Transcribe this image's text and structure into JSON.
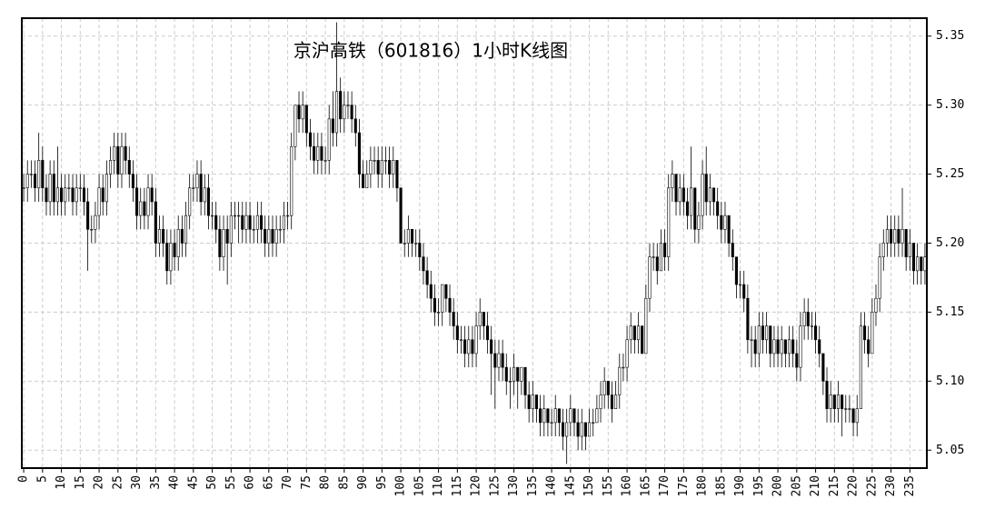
{
  "chart_data": {
    "type": "candlestick",
    "title": "京沪高铁（601816）1小时K线图",
    "xlim": [
      -0.5,
      239.5
    ],
    "xticks": [
      0,
      5,
      10,
      15,
      20,
      25,
      30,
      35,
      40,
      45,
      50,
      55,
      60,
      65,
      70,
      75,
      80,
      85,
      90,
      95,
      100,
      105,
      110,
      115,
      120,
      125,
      130,
      135,
      140,
      145,
      150,
      155,
      160,
      165,
      170,
      175,
      180,
      185,
      190,
      195,
      200,
      205,
      210,
      215,
      220,
      225,
      230,
      235
    ],
    "ylim": [
      5.037,
      5.363
    ],
    "yticks": [
      5.05,
      {
        "value": 5.1,
        "label": "5.10"
      },
      5.15,
      {
        "value": 5.2,
        "label": "5.20"
      },
      5.25,
      {
        "value": 5.3,
        "label": "5.30"
      },
      5.35
    ],
    "grid": true,
    "up_color": "#ffffff",
    "down_color": "#000000",
    "ohlc": [
      [
        5.24,
        5.25,
        5.23,
        5.24
      ],
      [
        5.24,
        5.26,
        5.23,
        5.25
      ],
      [
        5.25,
        5.26,
        5.24,
        5.25
      ],
      [
        5.25,
        5.26,
        5.23,
        5.24
      ],
      [
        5.24,
        5.28,
        5.23,
        5.26
      ],
      [
        5.26,
        5.27,
        5.23,
        5.24
      ],
      [
        5.24,
        5.25,
        5.22,
        5.23
      ],
      [
        5.23,
        5.26,
        5.22,
        5.25
      ],
      [
        5.25,
        5.26,
        5.22,
        5.23
      ],
      [
        5.23,
        5.27,
        5.22,
        5.24
      ],
      [
        5.24,
        5.25,
        5.22,
        5.23
      ],
      [
        5.23,
        5.25,
        5.22,
        5.24
      ],
      [
        5.24,
        5.25,
        5.23,
        5.24
      ],
      [
        5.24,
        5.25,
        5.22,
        5.23
      ],
      [
        5.23,
        5.25,
        5.22,
        5.24
      ],
      [
        5.24,
        5.25,
        5.23,
        5.24
      ],
      [
        5.24,
        5.25,
        5.22,
        5.23
      ],
      [
        5.23,
        5.24,
        5.18,
        5.21
      ],
      [
        5.21,
        5.22,
        5.2,
        5.21
      ],
      [
        5.21,
        5.23,
        5.2,
        5.22
      ],
      [
        5.22,
        5.25,
        5.21,
        5.24
      ],
      [
        5.24,
        5.25,
        5.22,
        5.23
      ],
      [
        5.23,
        5.26,
        5.22,
        5.25
      ],
      [
        5.25,
        5.27,
        5.24,
        5.26
      ],
      [
        5.26,
        5.28,
        5.25,
        5.27
      ],
      [
        5.27,
        5.28,
        5.24,
        5.25
      ],
      [
        5.25,
        5.28,
        5.24,
        5.27
      ],
      [
        5.27,
        5.28,
        5.25,
        5.26
      ],
      [
        5.26,
        5.27,
        5.24,
        5.25
      ],
      [
        5.25,
        5.26,
        5.23,
        5.24
      ],
      [
        5.24,
        5.25,
        5.21,
        5.22
      ],
      [
        5.22,
        5.24,
        5.21,
        5.23
      ],
      [
        5.23,
        5.24,
        5.21,
        5.22
      ],
      [
        5.22,
        5.25,
        5.21,
        5.24
      ],
      [
        5.24,
        5.25,
        5.22,
        5.23
      ],
      [
        5.23,
        5.24,
        5.19,
        5.2
      ],
      [
        5.2,
        5.22,
        5.19,
        5.21
      ],
      [
        5.21,
        5.22,
        5.19,
        5.2
      ],
      [
        5.2,
        5.21,
        5.17,
        5.18
      ],
      [
        5.18,
        5.21,
        5.17,
        5.2
      ],
      [
        5.2,
        5.21,
        5.18,
        5.19
      ],
      [
        5.19,
        5.22,
        5.18,
        5.21
      ],
      [
        5.21,
        5.22,
        5.19,
        5.2
      ],
      [
        5.2,
        5.23,
        5.19,
        5.22
      ],
      [
        5.22,
        5.25,
        5.21,
        5.24
      ],
      [
        5.24,
        5.25,
        5.23,
        5.24
      ],
      [
        5.24,
        5.26,
        5.23,
        5.25
      ],
      [
        5.25,
        5.26,
        5.22,
        5.23
      ],
      [
        5.23,
        5.25,
        5.22,
        5.24
      ],
      [
        5.24,
        5.25,
        5.21,
        5.22
      ],
      [
        5.22,
        5.23,
        5.21,
        5.22
      ],
      [
        5.22,
        5.23,
        5.2,
        5.21
      ],
      [
        5.21,
        5.22,
        5.18,
        5.19
      ],
      [
        5.19,
        5.22,
        5.18,
        5.21
      ],
      [
        5.21,
        5.22,
        5.17,
        5.2
      ],
      [
        5.2,
        5.23,
        5.19,
        5.22
      ],
      [
        5.22,
        5.23,
        5.21,
        5.22
      ],
      [
        5.22,
        5.23,
        5.2,
        5.22
      ],
      [
        5.22,
        5.23,
        5.2,
        5.21
      ],
      [
        5.21,
        5.23,
        5.2,
        5.22
      ],
      [
        5.22,
        5.23,
        5.2,
        5.21
      ],
      [
        5.21,
        5.22,
        5.2,
        5.21
      ],
      [
        5.21,
        5.23,
        5.2,
        5.22
      ],
      [
        5.22,
        5.23,
        5.2,
        5.21
      ],
      [
        5.21,
        5.22,
        5.19,
        5.2
      ],
      [
        5.2,
        5.22,
        5.19,
        5.21
      ],
      [
        5.21,
        5.22,
        5.19,
        5.2
      ],
      [
        5.2,
        5.22,
        5.19,
        5.21
      ],
      [
        5.21,
        5.22,
        5.2,
        5.21
      ],
      [
        5.21,
        5.23,
        5.2,
        5.22
      ],
      [
        5.22,
        5.23,
        5.21,
        5.22
      ],
      [
        5.22,
        5.28,
        5.21,
        5.27
      ],
      [
        5.27,
        5.3,
        5.26,
        5.3
      ],
      [
        5.3,
        5.31,
        5.28,
        5.29
      ],
      [
        5.29,
        5.31,
        5.28,
        5.3
      ],
      [
        5.3,
        5.3,
        5.27,
        5.28
      ],
      [
        5.28,
        5.29,
        5.26,
        5.27
      ],
      [
        5.27,
        5.28,
        5.25,
        5.26
      ],
      [
        5.26,
        5.28,
        5.25,
        5.27
      ],
      [
        5.27,
        5.28,
        5.25,
        5.26
      ],
      [
        5.26,
        5.27,
        5.25,
        5.26
      ],
      [
        5.26,
        5.3,
        5.25,
        5.29
      ],
      [
        5.29,
        5.31,
        5.27,
        5.28
      ],
      [
        5.28,
        5.36,
        5.27,
        5.31
      ],
      [
        5.31,
        5.32,
        5.28,
        5.29
      ],
      [
        5.29,
        5.31,
        5.28,
        5.3
      ],
      [
        5.3,
        5.31,
        5.29,
        5.3
      ],
      [
        5.3,
        5.31,
        5.28,
        5.29
      ],
      [
        5.29,
        5.3,
        5.27,
        5.28
      ],
      [
        5.28,
        5.29,
        5.24,
        5.25
      ],
      [
        5.25,
        5.26,
        5.24,
        5.24
      ],
      [
        5.24,
        5.26,
        5.24,
        5.25
      ],
      [
        5.25,
        5.27,
        5.24,
        5.26
      ],
      [
        5.26,
        5.27,
        5.25,
        5.26
      ],
      [
        5.26,
        5.27,
        5.24,
        5.25
      ],
      [
        5.25,
        5.27,
        5.24,
        5.26
      ],
      [
        5.26,
        5.27,
        5.25,
        5.26
      ],
      [
        5.26,
        5.27,
        5.24,
        5.25
      ],
      [
        5.25,
        5.27,
        5.24,
        5.26
      ],
      [
        5.26,
        5.26,
        5.23,
        5.24
      ],
      [
        5.24,
        5.24,
        5.2,
        5.2
      ],
      [
        5.2,
        5.21,
        5.19,
        5.2
      ],
      [
        5.2,
        5.22,
        5.19,
        5.21
      ],
      [
        5.21,
        5.21,
        5.19,
        5.2
      ],
      [
        5.2,
        5.21,
        5.19,
        5.2
      ],
      [
        5.2,
        5.21,
        5.18,
        5.19
      ],
      [
        5.19,
        5.2,
        5.17,
        5.18
      ],
      [
        5.18,
        5.19,
        5.16,
        5.17
      ],
      [
        5.17,
        5.18,
        5.15,
        5.16
      ],
      [
        5.16,
        5.17,
        5.14,
        5.15
      ],
      [
        5.15,
        5.16,
        5.14,
        5.15
      ],
      [
        5.15,
        5.17,
        5.14,
        5.17
      ],
      [
        5.17,
        5.17,
        5.15,
        5.16
      ],
      [
        5.16,
        5.17,
        5.14,
        5.15
      ],
      [
        5.15,
        5.16,
        5.13,
        5.14
      ],
      [
        5.14,
        5.15,
        5.12,
        5.13
      ],
      [
        5.13,
        5.14,
        5.12,
        5.13
      ],
      [
        5.13,
        5.14,
        5.11,
        5.12
      ],
      [
        5.12,
        5.14,
        5.11,
        5.13
      ],
      [
        5.13,
        5.14,
        5.11,
        5.12
      ],
      [
        5.12,
        5.15,
        5.11,
        5.14
      ],
      [
        5.14,
        5.16,
        5.13,
        5.15
      ],
      [
        5.15,
        5.15,
        5.13,
        5.14
      ],
      [
        5.14,
        5.15,
        5.12,
        5.13
      ],
      [
        5.13,
        5.14,
        5.09,
        5.12
      ],
      [
        5.12,
        5.13,
        5.08,
        5.11
      ],
      [
        5.11,
        5.13,
        5.1,
        5.12
      ],
      [
        5.12,
        5.13,
        5.1,
        5.11
      ],
      [
        5.11,
        5.12,
        5.09,
        5.1
      ],
      [
        5.1,
        5.11,
        5.08,
        5.1
      ],
      [
        5.1,
        5.12,
        5.09,
        5.11
      ],
      [
        5.11,
        5.11,
        5.08,
        5.1
      ],
      [
        5.1,
        5.11,
        5.09,
        5.11
      ],
      [
        5.11,
        5.11,
        5.08,
        5.09
      ],
      [
        5.09,
        5.1,
        5.07,
        5.08
      ],
      [
        5.08,
        5.1,
        5.07,
        5.09
      ],
      [
        5.09,
        5.09,
        5.07,
        5.08
      ],
      [
        5.08,
        5.09,
        5.06,
        5.07
      ],
      [
        5.07,
        5.09,
        5.06,
        5.08
      ],
      [
        5.08,
        5.08,
        5.06,
        5.07
      ],
      [
        5.07,
        5.08,
        5.06,
        5.07
      ],
      [
        5.07,
        5.09,
        5.06,
        5.08
      ],
      [
        5.08,
        5.08,
        5.06,
        5.07
      ],
      [
        5.07,
        5.08,
        5.05,
        5.06
      ],
      [
        5.06,
        5.08,
        5.04,
        5.07
      ],
      [
        5.07,
        5.09,
        5.06,
        5.08
      ],
      [
        5.08,
        5.08,
        5.06,
        5.07
      ],
      [
        5.07,
        5.08,
        5.05,
        5.06
      ],
      [
        5.06,
        5.08,
        5.05,
        5.07
      ],
      [
        5.07,
        5.07,
        5.05,
        5.06
      ],
      [
        5.06,
        5.08,
        5.06,
        5.07
      ],
      [
        5.07,
        5.08,
        5.06,
        5.07
      ],
      [
        5.07,
        5.09,
        5.07,
        5.08
      ],
      [
        5.08,
        5.1,
        5.07,
        5.09
      ],
      [
        5.09,
        5.11,
        5.08,
        5.1
      ],
      [
        5.1,
        5.1,
        5.08,
        5.09
      ],
      [
        5.09,
        5.1,
        5.07,
        5.08
      ],
      [
        5.08,
        5.1,
        5.08,
        5.09
      ],
      [
        5.09,
        5.12,
        5.08,
        5.11
      ],
      [
        5.11,
        5.12,
        5.1,
        5.11
      ],
      [
        5.11,
        5.14,
        5.1,
        5.13
      ],
      [
        5.13,
        5.15,
        5.12,
        5.14
      ],
      [
        5.14,
        5.14,
        5.12,
        5.13
      ],
      [
        5.13,
        5.15,
        5.12,
        5.14
      ],
      [
        5.14,
        5.14,
        5.12,
        5.12
      ],
      [
        5.12,
        5.17,
        5.12,
        5.16
      ],
      [
        5.16,
        5.2,
        5.15,
        5.19
      ],
      [
        5.19,
        5.2,
        5.18,
        5.19
      ],
      [
        5.19,
        5.2,
        5.17,
        5.18
      ],
      [
        5.18,
        5.21,
        5.18,
        5.2
      ],
      [
        5.2,
        5.21,
        5.18,
        5.19
      ],
      [
        5.19,
        5.25,
        5.18,
        5.24
      ],
      [
        5.24,
        5.26,
        5.23,
        5.25
      ],
      [
        5.25,
        5.25,
        5.22,
        5.23
      ],
      [
        5.23,
        5.25,
        5.22,
        5.24
      ],
      [
        5.24,
        5.25,
        5.22,
        5.23
      ],
      [
        5.23,
        5.24,
        5.21,
        5.22
      ],
      [
        5.22,
        5.27,
        5.21,
        5.24
      ],
      [
        5.24,
        5.24,
        5.2,
        5.21
      ],
      [
        5.21,
        5.23,
        5.2,
        5.22
      ],
      [
        5.22,
        5.26,
        5.21,
        5.25
      ],
      [
        5.25,
        5.27,
        5.22,
        5.23
      ],
      [
        5.23,
        5.25,
        5.22,
        5.24
      ],
      [
        5.24,
        5.24,
        5.22,
        5.23
      ],
      [
        5.23,
        5.24,
        5.21,
        5.22
      ],
      [
        5.22,
        5.23,
        5.2,
        5.21
      ],
      [
        5.21,
        5.23,
        5.2,
        5.22
      ],
      [
        5.22,
        5.22,
        5.19,
        5.2
      ],
      [
        5.2,
        5.21,
        5.18,
        5.19
      ],
      [
        5.19,
        5.19,
        5.16,
        5.17
      ],
      [
        5.17,
        5.18,
        5.16,
        5.17
      ],
      [
        5.17,
        5.18,
        5.15,
        5.16
      ],
      [
        5.16,
        5.17,
        5.12,
        5.13
      ],
      [
        5.13,
        5.14,
        5.11,
        5.13
      ],
      [
        5.13,
        5.14,
        5.11,
        5.12
      ],
      [
        5.12,
        5.15,
        5.11,
        5.14
      ],
      [
        5.14,
        5.15,
        5.12,
        5.13
      ],
      [
        5.13,
        5.15,
        5.12,
        5.14
      ],
      [
        5.14,
        5.14,
        5.11,
        5.12
      ],
      [
        5.12,
        5.14,
        5.11,
        5.13
      ],
      [
        5.13,
        5.14,
        5.11,
        5.12
      ],
      [
        5.12,
        5.14,
        5.11,
        5.13
      ],
      [
        5.13,
        5.13,
        5.11,
        5.12
      ],
      [
        5.12,
        5.14,
        5.11,
        5.13
      ],
      [
        5.13,
        5.14,
        5.11,
        5.12
      ],
      [
        5.12,
        5.13,
        5.1,
        5.11
      ],
      [
        5.11,
        5.15,
        5.1,
        5.14
      ],
      [
        5.14,
        5.16,
        5.13,
        5.15
      ],
      [
        5.15,
        5.16,
        5.13,
        5.14
      ],
      [
        5.14,
        5.15,
        5.13,
        5.14
      ],
      [
        5.14,
        5.15,
        5.12,
        5.13
      ],
      [
        5.13,
        5.14,
        5.11,
        5.12
      ],
      [
        5.12,
        5.12,
        5.09,
        5.1
      ],
      [
        5.1,
        5.11,
        5.07,
        5.08
      ],
      [
        5.08,
        5.1,
        5.07,
        5.09
      ],
      [
        5.09,
        5.09,
        5.07,
        5.08
      ],
      [
        5.08,
        5.1,
        5.07,
        5.09
      ],
      [
        5.09,
        5.09,
        5.06,
        5.08
      ],
      [
        5.08,
        5.09,
        5.07,
        5.08
      ],
      [
        5.08,
        5.09,
        5.07,
        5.08
      ],
      [
        5.08,
        5.08,
        5.06,
        5.07
      ],
      [
        5.07,
        5.09,
        5.06,
        5.08
      ],
      [
        5.08,
        5.15,
        5.08,
        5.14
      ],
      [
        5.14,
        5.15,
        5.12,
        5.13
      ],
      [
        5.13,
        5.14,
        5.11,
        5.12
      ],
      [
        5.12,
        5.16,
        5.12,
        5.15
      ],
      [
        5.15,
        5.17,
        5.14,
        5.16
      ],
      [
        5.16,
        5.2,
        5.15,
        5.19
      ],
      [
        5.19,
        5.21,
        5.18,
        5.2
      ],
      [
        5.2,
        5.22,
        5.19,
        5.21
      ],
      [
        5.21,
        5.22,
        5.19,
        5.2
      ],
      [
        5.2,
        5.22,
        5.19,
        5.21
      ],
      [
        5.21,
        5.22,
        5.19,
        5.2
      ],
      [
        5.2,
        5.24,
        5.19,
        5.21
      ],
      [
        5.21,
        5.21,
        5.18,
        5.19
      ],
      [
        5.19,
        5.21,
        5.18,
        5.2
      ],
      [
        5.2,
        5.2,
        5.17,
        5.18
      ],
      [
        5.18,
        5.2,
        5.17,
        5.19
      ],
      [
        5.19,
        5.19,
        5.17,
        5.18
      ],
      [
        5.18,
        5.2,
        5.17,
        5.19
      ]
    ]
  }
}
